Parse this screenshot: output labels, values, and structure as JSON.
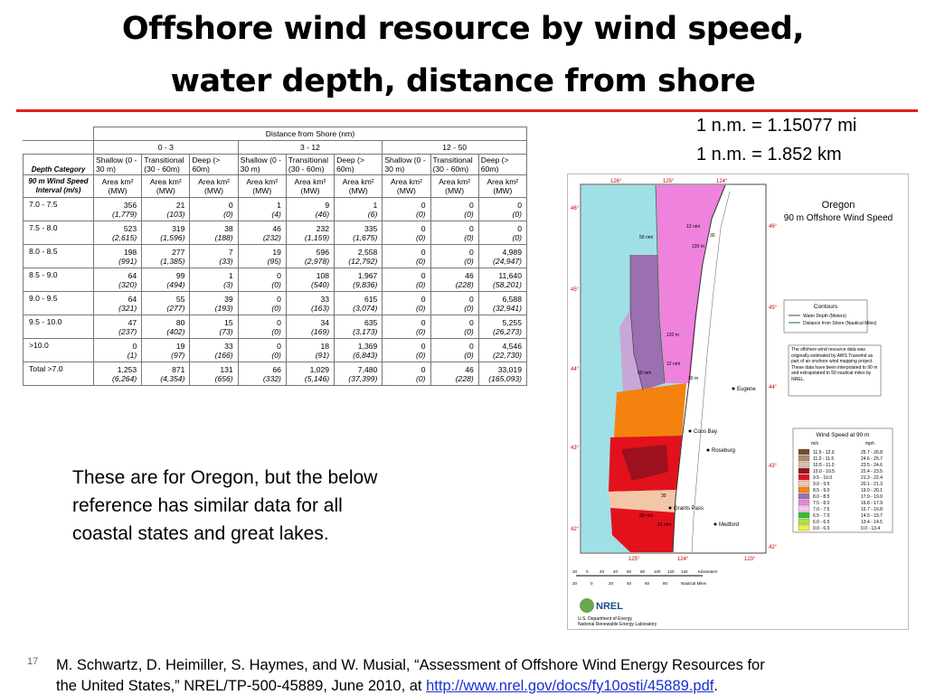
{
  "slide": {
    "title_line1": "Offshore wind resource by wind speed,",
    "title_line2": "water depth, distance from shore",
    "conversion1": "1 n.m. = 1.15077 mi",
    "conversion2": "1 n.m. = 1.852 km",
    "body_line1": "These are for Oregon, but the below",
    "body_line2": "reference has similar data for all",
    "body_line3": "coastal states and great lakes.",
    "page_number": "17",
    "citation_line1": "M. Schwartz, D. Heimiller, S. Haymes, and W. Musial, “Assessment of Offshore Wind Energy Resources for",
    "citation_line2": "the United States,” NREL/TP-500-45889, June 2010, at",
    "citation_link": "http://www.nrel.gov/docs/fy10osti/45889.pdf",
    "citation_end": "."
  },
  "table": {
    "header": {
      "distance": "Distance from Shore (nm)",
      "groups": [
        "0 - 3",
        "3 - 12",
        "12 - 50"
      ],
      "depth_label": "Depth Category",
      "depth": [
        "Shallow (0 - 30 m)",
        "Transitional (30 - 60m)",
        "Deep (> 60m)",
        "Shallow (0 - 30 m)",
        "Transitional (30 - 60m)",
        "Deep (> 60m)",
        "Shallow (0 - 30 m)",
        "Transitional (30 - 60m)",
        "Deep (> 60m)"
      ],
      "interval_label": "90 m Wind Speed Interval (m/s)",
      "unit": [
        "Area km² (MW)",
        "Area km² (MW)",
        "Area km² (MW)",
        "Area km² (MW)",
        "Area km² (MW)",
        "Area km² (MW)",
        "Area km² (MW)",
        "Area km² (MW)",
        "Area km² (MW)"
      ]
    },
    "rows": [
      {
        "label": "7.0 - 7.5",
        "cells": [
          {
            "area": "356",
            "mw": "(1,779)"
          },
          {
            "area": "21",
            "mw": "(103)"
          },
          {
            "area": "0",
            "mw": "(0)"
          },
          {
            "area": "1",
            "mw": "(4)"
          },
          {
            "area": "9",
            "mw": "(46)"
          },
          {
            "area": "1",
            "mw": "(6)"
          },
          {
            "area": "0",
            "mw": "(0)"
          },
          {
            "area": "0",
            "mw": "(0)"
          },
          {
            "area": "0",
            "mw": "(0)"
          }
        ]
      },
      {
        "label": "7.5 - 8.0",
        "cells": [
          {
            "area": "523",
            "mw": "(2,615)"
          },
          {
            "area": "319",
            "mw": "(1,596)"
          },
          {
            "area": "38",
            "mw": "(188)"
          },
          {
            "area": "46",
            "mw": "(232)"
          },
          {
            "area": "232",
            "mw": "(1,159)"
          },
          {
            "area": "335",
            "mw": "(1,675)"
          },
          {
            "area": "0",
            "mw": "(0)"
          },
          {
            "area": "0",
            "mw": "(0)"
          },
          {
            "area": "0",
            "mw": "(0)"
          }
        ]
      },
      {
        "label": "8.0 - 8.5",
        "cells": [
          {
            "area": "198",
            "mw": "(991)"
          },
          {
            "area": "277",
            "mw": "(1,385)"
          },
          {
            "area": "7",
            "mw": "(33)"
          },
          {
            "area": "19",
            "mw": "(95)"
          },
          {
            "area": "596",
            "mw": "(2,978)"
          },
          {
            "area": "2,558",
            "mw": "(12,792)"
          },
          {
            "area": "0",
            "mw": "(0)"
          },
          {
            "area": "0",
            "mw": "(0)"
          },
          {
            "area": "4,989",
            "mw": "(24,947)"
          }
        ]
      },
      {
        "label": "8.5 - 9.0",
        "cells": [
          {
            "area": "64",
            "mw": "(320)"
          },
          {
            "area": "99",
            "mw": "(494)"
          },
          {
            "area": "1",
            "mw": "(3)"
          },
          {
            "area": "0",
            "mw": "(0)"
          },
          {
            "area": "108",
            "mw": "(540)"
          },
          {
            "area": "1,967",
            "mw": "(9,836)"
          },
          {
            "area": "0",
            "mw": "(0)"
          },
          {
            "area": "46",
            "mw": "(228)"
          },
          {
            "area": "11,640",
            "mw": "(58,201)"
          }
        ]
      },
      {
        "label": "9.0 - 9.5",
        "cells": [
          {
            "area": "64",
            "mw": "(321)"
          },
          {
            "area": "55",
            "mw": "(277)"
          },
          {
            "area": "39",
            "mw": "(193)"
          },
          {
            "area": "0",
            "mw": "(0)"
          },
          {
            "area": "33",
            "mw": "(163)"
          },
          {
            "area": "615",
            "mw": "(3,074)"
          },
          {
            "area": "0",
            "mw": "(0)"
          },
          {
            "area": "0",
            "mw": "(0)"
          },
          {
            "area": "6,588",
            "mw": "(32,941)"
          }
        ]
      },
      {
        "label": "9.5 - 10.0",
        "cells": [
          {
            "area": "47",
            "mw": "(237)"
          },
          {
            "area": "80",
            "mw": "(402)"
          },
          {
            "area": "15",
            "mw": "(73)"
          },
          {
            "area": "0",
            "mw": "(0)"
          },
          {
            "area": "34",
            "mw": "(169)"
          },
          {
            "area": "635",
            "mw": "(3,173)"
          },
          {
            "area": "0",
            "mw": "(0)"
          },
          {
            "area": "0",
            "mw": "(0)"
          },
          {
            "area": "5,255",
            "mw": "(26,273)"
          }
        ]
      },
      {
        "label": ">10.0",
        "cells": [
          {
            "area": "0",
            "mw": "(1)"
          },
          {
            "area": "19",
            "mw": "(97)"
          },
          {
            "area": "33",
            "mw": "(166)"
          },
          {
            "area": "0",
            "mw": "(0)"
          },
          {
            "area": "18",
            "mw": "(91)"
          },
          {
            "area": "1,369",
            "mw": "(6,843)"
          },
          {
            "area": "0",
            "mw": "(0)"
          },
          {
            "area": "0",
            "mw": "(0)"
          },
          {
            "area": "4,546",
            "mw": "(22,730)"
          }
        ]
      },
      {
        "label": "Total >7.0",
        "cells": [
          {
            "area": "1,253",
            "mw": "(6,264)"
          },
          {
            "area": "871",
            "mw": "(4,354)"
          },
          {
            "area": "131",
            "mw": "(656)"
          },
          {
            "area": "66",
            "mw": "(332)"
          },
          {
            "area": "1,029",
            "mw": "(5,146)"
          },
          {
            "area": "7,480",
            "mw": "(37,399)"
          },
          {
            "area": "0",
            "mw": "(0)"
          },
          {
            "area": "46",
            "mw": "(228)"
          },
          {
            "area": "33,019",
            "mw": "(165,093)"
          }
        ]
      }
    ]
  },
  "map": {
    "title1": "Oregon",
    "title2": "90 m Offshore Wind Speed",
    "lat_labels": [
      "46°",
      "45°",
      "44°",
      "43°",
      "42°"
    ],
    "lon_top": [
      "126°",
      "125°",
      "124°"
    ],
    "lon_bottom": [
      "125°",
      "124°",
      "123°"
    ],
    "cities": [
      "Eugene",
      "Coos Bay",
      "Roseburg",
      "Grants Pass",
      "Medford"
    ],
    "contour_labels": [
      "12 nmi",
      "30",
      "120 m",
      "50 nmi",
      "120 m",
      "50 nmi",
      "12 nmi",
      "30 m",
      "30",
      "50 nmi",
      "12 nmi"
    ],
    "contours_title": "Contours",
    "contour_depth": "Water Depth (Meters)",
    "contour_distance": "Distance from Shore (Nautical Miles)",
    "note": "The offshore wind resource data was originally estimated by AWS Truewind as part of an onshore wind mapping project. These data have been interpolated to 90 m and extrapolated to 50 nautical miles by NREL.",
    "legend_title": "Wind Speed at 90 m",
    "legend_ms": "m/s",
    "legend_mph": "mph",
    "legend": [
      {
        "ms": "11.5 - 12.0",
        "mph": "25.7 - 26.8",
        "color": "#7a4a35"
      },
      {
        "ms": "11.0 - 11.5",
        "mph": "24.6 - 25.7",
        "color": "#b08a6a"
      },
      {
        "ms": "10.5 - 11.0",
        "mph": "23.5 - 24.6",
        "color": "#d6c2aa"
      },
      {
        "ms": "10.0 - 10.5",
        "mph": "22.4 - 23.5",
        "color": "#9c1020"
      },
      {
        "ms": "9.5 - 10.0",
        "mph": "21.3 - 22.4",
        "color": "#e3111b"
      },
      {
        "ms": "9.0 - 9.5",
        "mph": "20.1 - 21.3",
        "color": "#f4c6a8"
      },
      {
        "ms": "8.5 - 9.0",
        "mph": "19.0 - 20.1",
        "color": "#f5820f"
      },
      {
        "ms": "8.0 - 8.5",
        "mph": "17.9 - 19.0",
        "color": "#9c6fb0"
      },
      {
        "ms": "7.5 - 8.0",
        "mph": "16.8 - 17.9",
        "color": "#ee82dc"
      },
      {
        "ms": "7.0 - 7.5",
        "mph": "15.7 - 16.8",
        "color": "#f8c8e8"
      },
      {
        "ms": "6.5 - 7.0",
        "mph": "14.5 - 15.7",
        "color": "#3cb83c"
      },
      {
        "ms": "6.0 - 6.5",
        "mph": "13.4 - 14.5",
        "color": "#a8e83c"
      },
      {
        "ms": "0.0 - 6.0",
        "mph": "0.0 - 13.4",
        "color": "#f0f040"
      }
    ],
    "scale_km": [
      "20",
      "0",
      "20",
      "40",
      "60",
      "80",
      "100",
      "120",
      "140",
      "Kilometers"
    ],
    "scale_nm": [
      "20",
      "0",
      "20",
      "40",
      "60",
      "80",
      "Nautical Miles"
    ],
    "logo": "NREL",
    "credit1": "U.S. Department of Energy",
    "credit2": "National Renewable Energy Laboratory"
  }
}
